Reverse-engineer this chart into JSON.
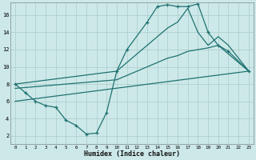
{
  "xlabel": "Humidex (Indice chaleur)",
  "x_ticks": [
    0,
    1,
    2,
    3,
    4,
    5,
    6,
    7,
    8,
    9,
    10,
    11,
    12,
    13,
    14,
    15,
    16,
    17,
    18,
    19,
    20,
    21,
    22,
    23
  ],
  "y_ticks": [
    2,
    4,
    6,
    8,
    10,
    12,
    14,
    16
  ],
  "xlim": [
    -0.5,
    23.5
  ],
  "ylim": [
    1.0,
    17.5
  ],
  "bg_color": "#cde8e8",
  "line_color": "#1e7272",
  "grid_color": "#aacccc",
  "main_x": [
    0,
    1,
    2,
    3,
    4,
    5,
    6,
    7,
    8,
    9,
    10,
    11,
    13,
    14,
    15,
    16,
    17,
    18,
    19,
    20,
    21,
    23
  ],
  "main_y": [
    8.0,
    7.0,
    6.0,
    5.5,
    5.3,
    3.8,
    3.2,
    2.2,
    2.3,
    4.7,
    9.5,
    12.0,
    15.2,
    17.0,
    17.2,
    17.0,
    17.0,
    17.3,
    14.0,
    12.5,
    11.8,
    9.5
  ],
  "upper_x": [
    0,
    10,
    14,
    15,
    16,
    17,
    18,
    19,
    20,
    21,
    23
  ],
  "upper_y": [
    8.0,
    9.5,
    13.5,
    14.5,
    15.2,
    16.8,
    14.0,
    12.5,
    13.5,
    12.5,
    9.5
  ],
  "lower_x": [
    0,
    10,
    14,
    15,
    16,
    17,
    18,
    19,
    20,
    21,
    23
  ],
  "lower_y": [
    7.5,
    8.5,
    10.5,
    11.0,
    11.3,
    11.8,
    12.0,
    12.2,
    12.5,
    11.5,
    9.5
  ],
  "trend_x": [
    0,
    23
  ],
  "trend_y": [
    6.0,
    9.5
  ]
}
